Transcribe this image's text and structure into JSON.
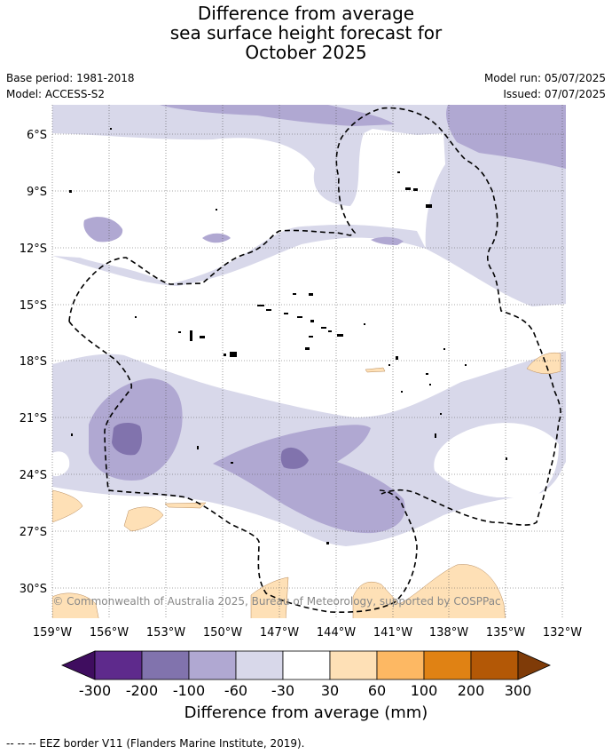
{
  "title": {
    "line1": "Difference from average",
    "line2": "sea surface height forecast for",
    "line3": "October 2025"
  },
  "meta": {
    "base_period": "Base period: 1981-2018",
    "model": "Model: ACCESS-S2",
    "model_run": "Model run: 05/07/2025",
    "issued": "Issued: 07/07/2025"
  },
  "map": {
    "lat_labels": [
      "6°S",
      "9°S",
      "12°S",
      "15°S",
      "18°S",
      "21°S",
      "24°S",
      "27°S",
      "30°S"
    ],
    "lon_labels": [
      "159°W",
      "156°W",
      "153°W",
      "150°W",
      "147°W",
      "144°W",
      "141°W",
      "138°W",
      "135°W",
      "132°W"
    ],
    "copyright": "© Commonwealth of Australia 2025, Bureau of Meteorology, supported by COSPPac"
  },
  "colorbar": {
    "ticks": [
      "-300",
      "-200",
      "-100",
      "-60",
      "-30",
      "30",
      "60",
      "100",
      "200",
      "300"
    ],
    "colors": [
      "#3f0d5f",
      "#5e2a8c",
      "#8173ad",
      "#b0a8d2",
      "#d8d8ea",
      "#ffffff",
      "#fee0b6",
      "#fdb863",
      "#e08214",
      "#b35806",
      "#7f3b08"
    ],
    "label": "Difference from average (mm)"
  },
  "footnote": "--  --  -- EEZ border V11 (Flanders Marine Institute, 2019)."
}
